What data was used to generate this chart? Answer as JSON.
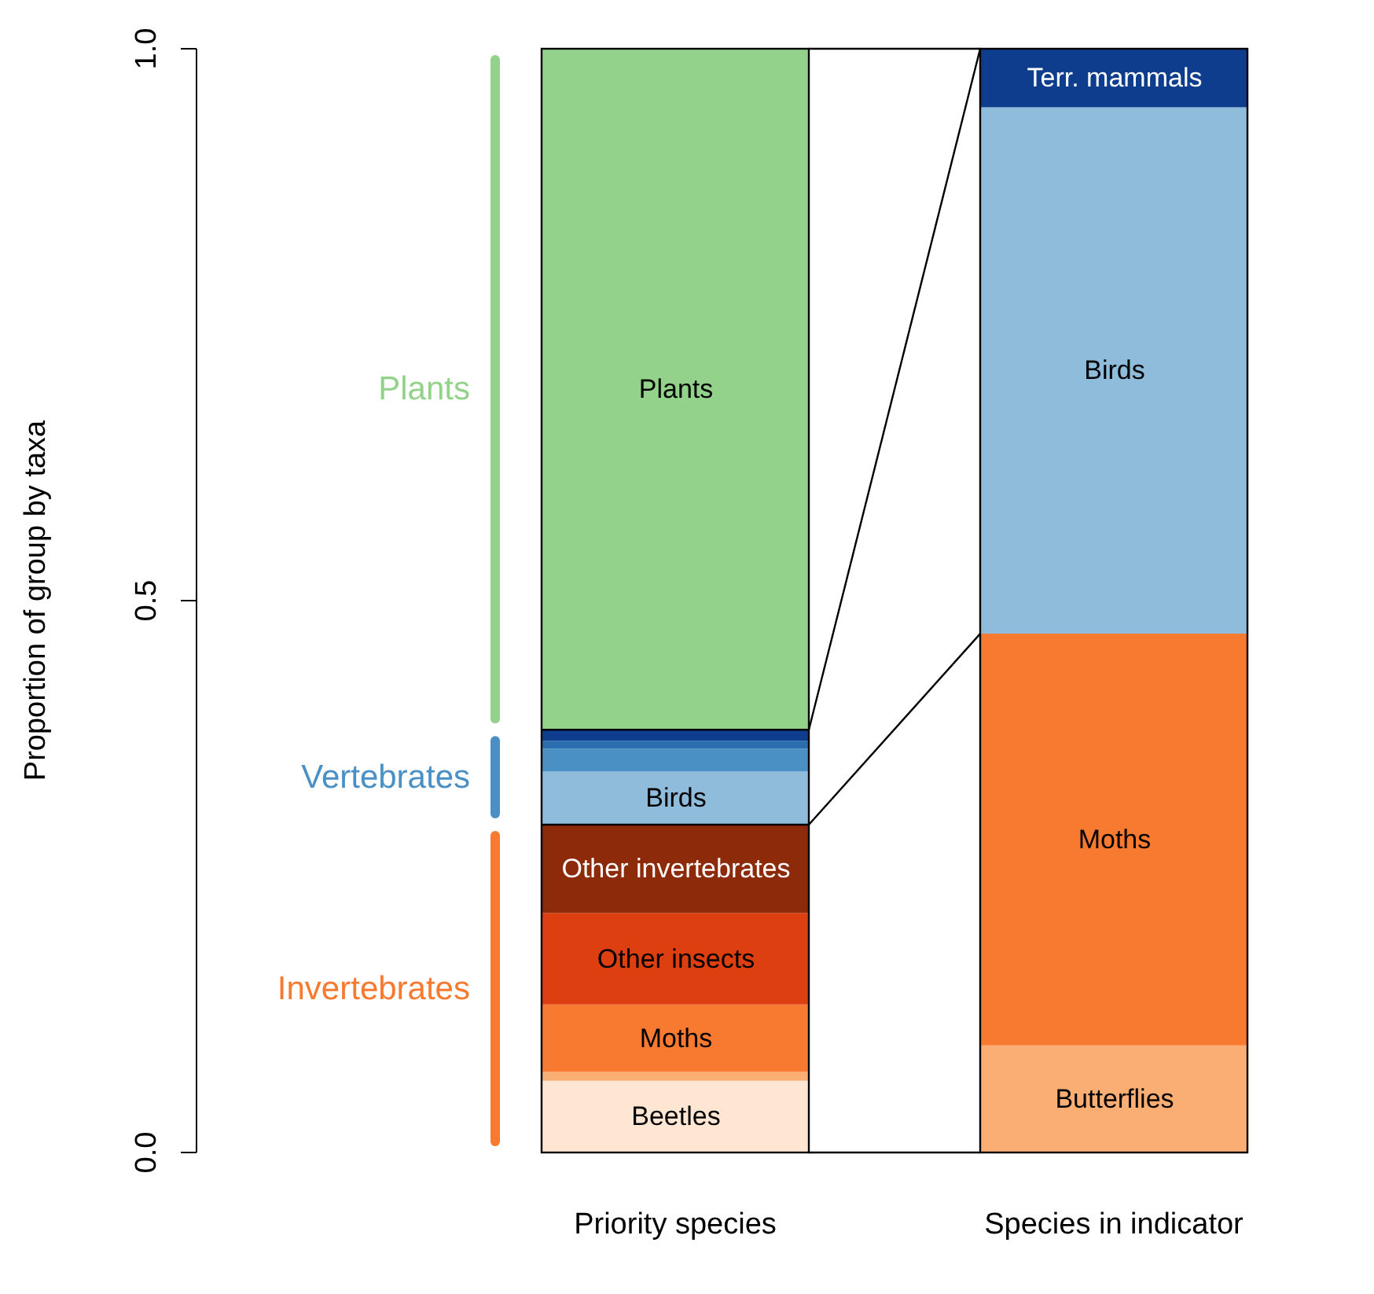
{
  "chart_data": {
    "type": "bar",
    "stacked": true,
    "ylabel": "Proportion of group by taxa",
    "categories": [
      "Priority species",
      "Species in indicator"
    ],
    "ylim": [
      0,
      1
    ],
    "yticks": [
      {
        "value": 0,
        "label": "0.0"
      },
      {
        "value": 0.5,
        "label": "0.5"
      },
      {
        "value": 1,
        "label": "1.0"
      }
    ],
    "grid": false,
    "legend": false,
    "series": [
      {
        "name": "Beetles",
        "color": "#fee6d2",
        "values": [
          0.065,
          0
        ]
      },
      {
        "name": "Butterflies",
        "color": "#fbae73",
        "values": [
          0.008,
          0.097
        ]
      },
      {
        "name": "Moths",
        "color": "#f87a30",
        "values": [
          0.061,
          0.373
        ]
      },
      {
        "name": "Other insects",
        "color": "#dd3f10",
        "values": [
          0.083,
          0
        ]
      },
      {
        "name": "Other invertebrates",
        "color": "#8c2a0a",
        "values": [
          0.08,
          0
        ]
      },
      {
        "name": "Birds",
        "color": "#8fbcdb",
        "values": [
          0.048,
          0.477
        ]
      },
      {
        "color": "#4a90c4",
        "values": [
          0.021,
          0
        ]
      },
      {
        "color": "#2a6eb0",
        "values": [
          0.007,
          0
        ]
      },
      {
        "name": "Terr. mammals",
        "color": "#0d3d8c",
        "values": [
          0.01,
          0.053
        ]
      },
      {
        "name": "Plants",
        "color": "#93d28a",
        "values": [
          0.617,
          0
        ]
      }
    ],
    "annotations": [
      "Invertebrates",
      "Vertebrates",
      "Plants"
    ]
  }
}
